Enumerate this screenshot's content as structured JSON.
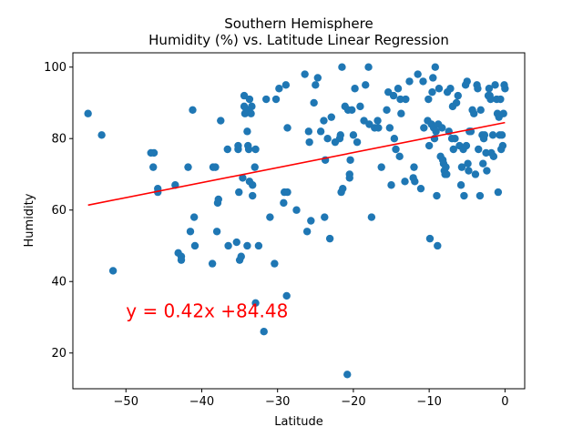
{
  "chart_data": {
    "type": "scatter",
    "title_line1": "Southern Hemisphere",
    "title_line2": "Humidity (%) vs. Latitude Linear Regression",
    "xlabel": "Latitude",
    "ylabel": "Humidity",
    "xlim": [
      -57,
      2.6
    ],
    "ylim": [
      10,
      104
    ],
    "xticks": [
      -50,
      -40,
      -30,
      -20,
      -10,
      0
    ],
    "yticks": [
      20,
      40,
      60,
      80,
      100
    ],
    "xtick_labels": [
      "−50",
      "−40",
      "−30",
      "−20",
      "−10",
      "0"
    ],
    "ytick_labels": [
      "20",
      "40",
      "60",
      "80",
      "100"
    ],
    "grid": false,
    "legend": "none",
    "point_color": "#1f77b4",
    "line_color": "#ff0000",
    "regression": {
      "slope": 0.42,
      "intercept": 84.48,
      "x_range": [
        -55,
        0
      ]
    },
    "annotation": {
      "text": "y = 0.42x +84.48",
      "x": -50,
      "y": 30,
      "color": "#ff0000"
    },
    "points": [
      [
        -55,
        87
      ],
      [
        -53.2,
        81
      ],
      [
        -51.7,
        43
      ],
      [
        -46.7,
        76
      ],
      [
        -46.3,
        76
      ],
      [
        -46.4,
        72
      ],
      [
        -45.8,
        66
      ],
      [
        -45.8,
        65
      ],
      [
        -43.5,
        67
      ],
      [
        -43.1,
        48
      ],
      [
        -42.7,
        47
      ],
      [
        -42.7,
        46
      ],
      [
        -41.8,
        72
      ],
      [
        -41.5,
        54
      ],
      [
        -41.2,
        88
      ],
      [
        -41.0,
        58
      ],
      [
        -40.9,
        50
      ],
      [
        -38.6,
        45
      ],
      [
        -38.5,
        72
      ],
      [
        -38.2,
        72
      ],
      [
        -38.0,
        54
      ],
      [
        -37.9,
        62
      ],
      [
        -37.8,
        63
      ],
      [
        -37.5,
        85
      ],
      [
        -36.6,
        77
      ],
      [
        -36.5,
        50
      ],
      [
        -35.4,
        51
      ],
      [
        -35.2,
        78
      ],
      [
        -35.2,
        77
      ],
      [
        -35.1,
        65
      ],
      [
        -35.0,
        46
      ],
      [
        -34.8,
        47
      ],
      [
        -34.6,
        69
      ],
      [
        -34.4,
        92
      ],
      [
        -34.4,
        89
      ],
      [
        -34.3,
        87
      ],
      [
        -34.1,
        88
      ],
      [
        -34.0,
        82
      ],
      [
        -34.0,
        50
      ],
      [
        -33.9,
        78
      ],
      [
        -33.8,
        77
      ],
      [
        -33.7,
        91
      ],
      [
        -33.7,
        68
      ],
      [
        -33.5,
        87
      ],
      [
        -33.4,
        89
      ],
      [
        -33.3,
        64
      ],
      [
        -33.3,
        67
      ],
      [
        -33.0,
        72
      ],
      [
        -32.9,
        77
      ],
      [
        -32.9,
        34
      ],
      [
        -32.5,
        50
      ],
      [
        -31.8,
        26
      ],
      [
        -31.5,
        91
      ],
      [
        -31.0,
        58
      ],
      [
        -30.4,
        45
      ],
      [
        -30.2,
        91
      ],
      [
        -29.8,
        94
      ],
      [
        -29.2,
        62
      ],
      [
        -29.1,
        65
      ],
      [
        -28.9,
        95
      ],
      [
        -28.8,
        36
      ],
      [
        -28.7,
        65
      ],
      [
        -28.7,
        83
      ],
      [
        -27.5,
        60
      ],
      [
        -26.4,
        98
      ],
      [
        -26.1,
        54
      ],
      [
        -25.9,
        82
      ],
      [
        -25.8,
        79
      ],
      [
        -25.6,
        57
      ],
      [
        -25.2,
        90
      ],
      [
        -25.0,
        95
      ],
      [
        -24.7,
        97
      ],
      [
        -24.3,
        82
      ],
      [
        -23.9,
        85
      ],
      [
        -23.8,
        58
      ],
      [
        -23.7,
        74
      ],
      [
        -23.4,
        80
      ],
      [
        -23.1,
        52
      ],
      [
        -22.9,
        86
      ],
      [
        -22.4,
        79
      ],
      [
        -21.8,
        80
      ],
      [
        -21.7,
        81
      ],
      [
        -21.6,
        65
      ],
      [
        -21.5,
        100
      ],
      [
        -21.4,
        66
      ],
      [
        -21.1,
        89
      ],
      [
        -20.8,
        14
      ],
      [
        -20.7,
        88
      ],
      [
        -20.5,
        70
      ],
      [
        -20.5,
        69
      ],
      [
        -20.4,
        74
      ],
      [
        -20.2,
        88
      ],
      [
        -20.0,
        81
      ],
      [
        -19.8,
        94
      ],
      [
        -19.5,
        79
      ],
      [
        -19.1,
        89
      ],
      [
        -18.6,
        85
      ],
      [
        -18.4,
        95
      ],
      [
        -18.0,
        100
      ],
      [
        -17.9,
        84
      ],
      [
        -17.6,
        58
      ],
      [
        -17.2,
        83
      ],
      [
        -16.8,
        85
      ],
      [
        -16.7,
        83
      ],
      [
        -16.3,
        72
      ],
      [
        -15.6,
        88
      ],
      [
        -15.4,
        93
      ],
      [
        -15.2,
        83
      ],
      [
        -15.0,
        67
      ],
      [
        -14.7,
        92
      ],
      [
        -14.6,
        80
      ],
      [
        -14.4,
        77
      ],
      [
        -14.1,
        94
      ],
      [
        -13.9,
        75
      ],
      [
        -13.8,
        91
      ],
      [
        -13.7,
        87
      ],
      [
        -13.2,
        68
      ],
      [
        -13.1,
        91
      ],
      [
        -12.6,
        96
      ],
      [
        -12.1,
        69
      ],
      [
        -12.0,
        72
      ],
      [
        -11.9,
        68
      ],
      [
        -11.5,
        98
      ],
      [
        -11.1,
        66
      ],
      [
        -10.8,
        96
      ],
      [
        -10.7,
        83
      ],
      [
        -10.2,
        85
      ],
      [
        -10.1,
        91
      ],
      [
        -10.0,
        78
      ],
      [
        -9.9,
        52
      ],
      [
        -9.7,
        84
      ],
      [
        -9.6,
        93
      ],
      [
        -9.5,
        97
      ],
      [
        -9.4,
        83
      ],
      [
        -9.3,
        80
      ],
      [
        -9.2,
        100
      ],
      [
        -9.1,
        82
      ],
      [
        -9.0,
        64
      ],
      [
        -8.9,
        50
      ],
      [
        -8.8,
        84
      ],
      [
        -8.7,
        94
      ],
      [
        -8.5,
        75
      ],
      [
        -8.3,
        83
      ],
      [
        -8.2,
        74
      ],
      [
        -8.1,
        73
      ],
      [
        -8.0,
        71
      ],
      [
        -7.9,
        70
      ],
      [
        -7.8,
        72
      ],
      [
        -7.7,
        70
      ],
      [
        -7.6,
        93
      ],
      [
        -7.4,
        82
      ],
      [
        -7.2,
        94
      ],
      [
        -7.0,
        80
      ],
      [
        -6.9,
        89
      ],
      [
        -6.8,
        77
      ],
      [
        -6.6,
        80
      ],
      [
        -6.4,
        90
      ],
      [
        -6.2,
        92
      ],
      [
        -6.0,
        78
      ],
      [
        -5.8,
        67
      ],
      [
        -5.7,
        72
      ],
      [
        -5.5,
        77
      ],
      [
        -5.4,
        64
      ],
      [
        -5.2,
        95
      ],
      [
        -5.1,
        78
      ],
      [
        -5.0,
        96
      ],
      [
        -4.9,
        73
      ],
      [
        -4.8,
        71
      ],
      [
        -4.7,
        82
      ],
      [
        -4.5,
        82
      ],
      [
        -4.3,
        88
      ],
      [
        -4.1,
        87
      ],
      [
        -3.9,
        70
      ],
      [
        -3.7,
        95
      ],
      [
        -3.6,
        94
      ],
      [
        -3.5,
        77
      ],
      [
        -3.3,
        64
      ],
      [
        -3.2,
        88
      ],
      [
        -3.0,
        81
      ],
      [
        -2.9,
        73
      ],
      [
        -2.8,
        80
      ],
      [
        -2.7,
        81
      ],
      [
        -2.5,
        76
      ],
      [
        -2.4,
        71
      ],
      [
        -2.2,
        92
      ],
      [
        -2.1,
        94
      ],
      [
        -2.0,
        92
      ],
      [
        -1.9,
        91
      ],
      [
        -1.8,
        76
      ],
      [
        -1.6,
        81
      ],
      [
        -1.5,
        75
      ],
      [
        -1.3,
        95
      ],
      [
        -1.1,
        91
      ],
      [
        -1.0,
        87
      ],
      [
        -0.9,
        65
      ],
      [
        -0.8,
        86
      ],
      [
        -0.7,
        81
      ],
      [
        -0.6,
        91
      ],
      [
        -0.5,
        77
      ],
      [
        -0.4,
        81
      ],
      [
        -0.3,
        78
      ],
      [
        -0.2,
        87
      ],
      [
        -0.1,
        95
      ],
      [
        0.0,
        94
      ]
    ]
  }
}
